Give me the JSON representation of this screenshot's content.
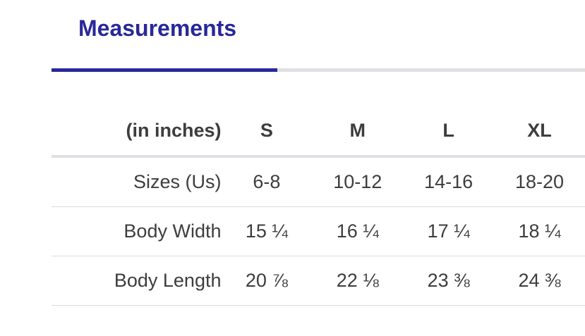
{
  "tab": {
    "label": "Measurements",
    "active_color": "#28289a"
  },
  "table": {
    "headers": [
      "(in inches)",
      "S",
      "M",
      "L",
      "XL"
    ],
    "rows": [
      {
        "label": "Sizes (Us)",
        "values": [
          "6-8",
          "10-12",
          "14-16",
          "18-20"
        ]
      },
      {
        "label": "Body Width",
        "values": [
          "15 ¼",
          "16 ¼",
          "17 ¼",
          "18 ¼"
        ]
      },
      {
        "label": "Body Length",
        "values": [
          "20 ⅞",
          "22 ⅛",
          "23 ⅜",
          "24 ⅜"
        ]
      }
    ]
  }
}
